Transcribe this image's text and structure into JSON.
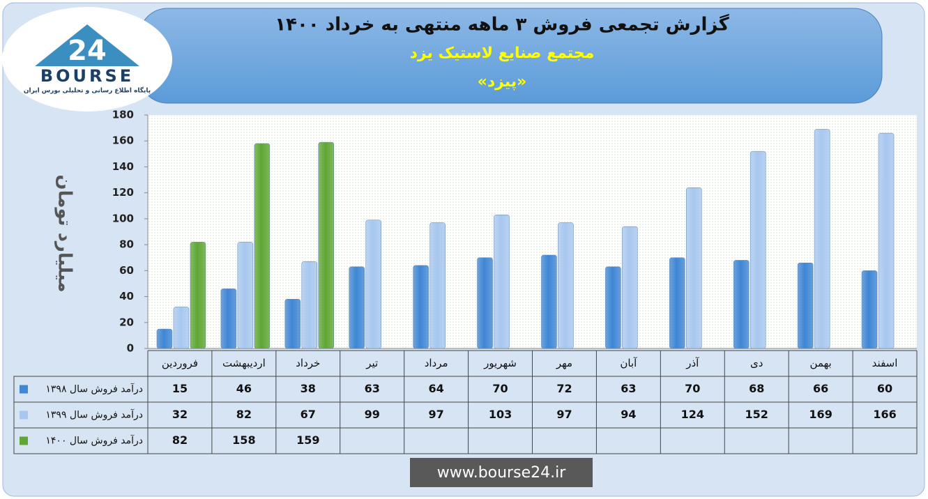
{
  "logo": {
    "number": "24",
    "brand": "BOURSE",
    "tagline": "پایگاه اطلاع رسانی و تحلیلی بورس ایران"
  },
  "chart_data": {
    "type": "bar",
    "title": "گزارش تجمعی فروش ۳ ماهه منتهی به خرداد ۱۴۰۰",
    "subtitle": "مجتمع صنایع لاستیک یزد",
    "symbol": "«پیزد»",
    "ylabel": "میلیارد تومان",
    "categories": [
      "فروردین",
      "اردیبهشت",
      "خرداد",
      "تیر",
      "مرداد",
      "شهریور",
      "مهر",
      "آبان",
      "آذر",
      "دی",
      "بهمن",
      "اسفند"
    ],
    "series": [
      {
        "name": "درآمد فروش سال ۱۳۹۸",
        "color": "#3f86d4",
        "values": [
          15,
          46,
          38,
          63,
          64,
          70,
          72,
          63,
          70,
          68,
          66,
          60
        ]
      },
      {
        "name": "درآمد فروش سال ۱۳۹۹",
        "color": "#a8c7ef",
        "values": [
          32,
          82,
          67,
          99,
          97,
          103,
          97,
          94,
          124,
          152,
          169,
          166
        ]
      },
      {
        "name": "درآمد فروش سال ۱۴۰۰",
        "color": "#5fa634",
        "values": [
          82,
          158,
          159,
          null,
          null,
          null,
          null,
          null,
          null,
          null,
          null,
          null
        ]
      }
    ],
    "ylim": [
      0,
      180
    ],
    "yticks": [
      0,
      20,
      40,
      60,
      80,
      100,
      120,
      140,
      160,
      180
    ],
    "grid": false
  },
  "footer": {
    "url": "www.bourse24.ir"
  }
}
